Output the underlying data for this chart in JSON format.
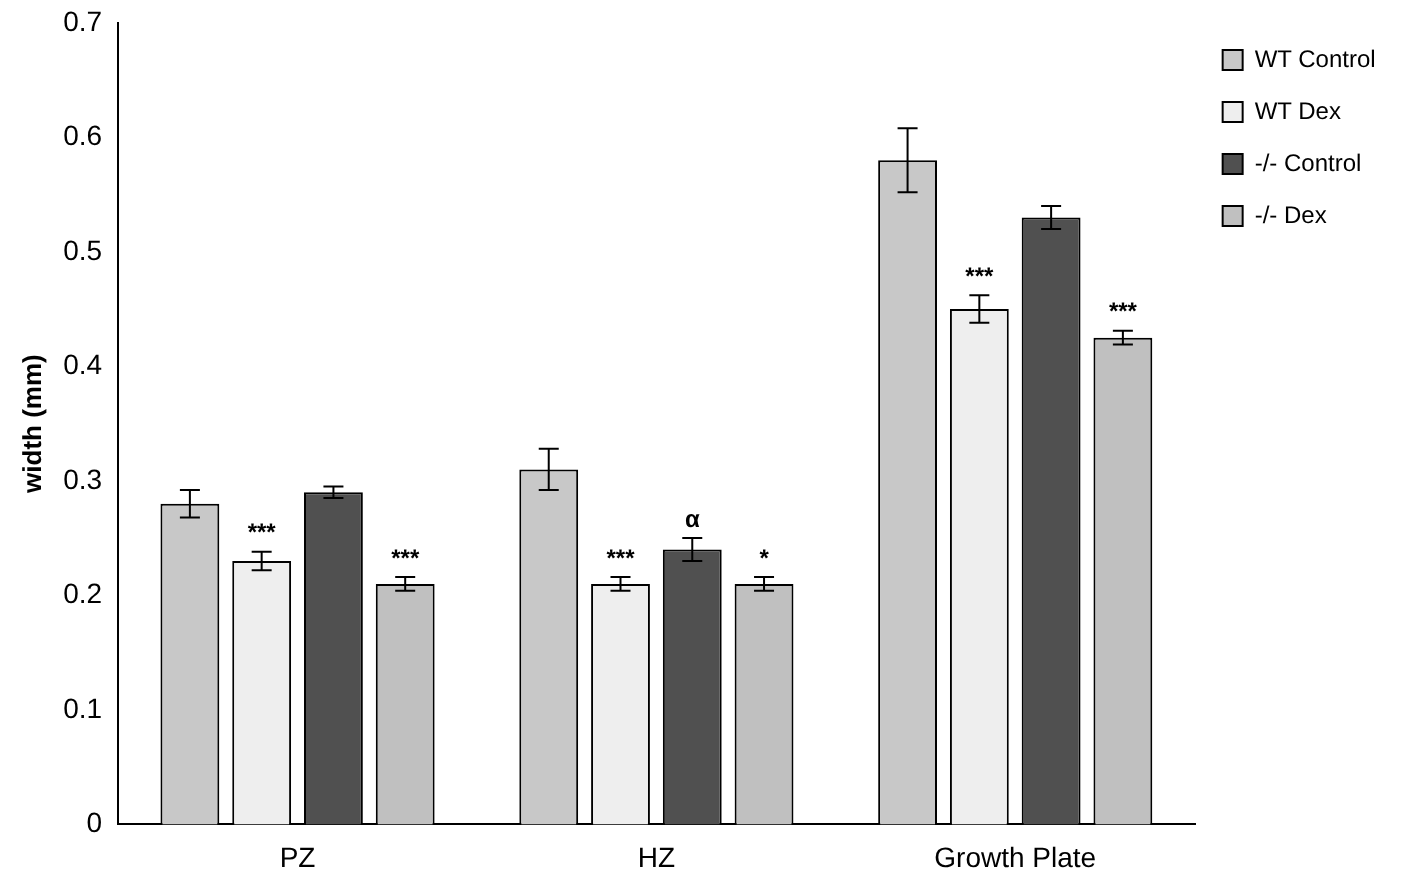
{
  "chart_data": {
    "type": "bar",
    "ylabel": "width (mm)",
    "categories": [
      "PZ",
      "HZ",
      "Growth Plate"
    ],
    "series": [
      {
        "name": "WT Control",
        "color": "#c8c8c8",
        "values": [
          0.28,
          0.31,
          0.58
        ],
        "errors": [
          0.012,
          0.018,
          0.028
        ]
      },
      {
        "name": "WT Dex",
        "color": "#eeeeee",
        "values": [
          0.23,
          0.21,
          0.45
        ],
        "errors": [
          0.008,
          0.006,
          0.012
        ],
        "value_labels": [
          "***",
          "***",
          "***"
        ]
      },
      {
        "name": "-/- Control",
        "color": "#505050",
        "values": [
          0.29,
          0.24,
          0.53
        ],
        "errors": [
          0.005,
          0.01,
          0.01
        ],
        "value_labels": [
          null,
          "α",
          null
        ]
      },
      {
        "name": "-/- Dex",
        "color": "#c0c0c0",
        "values": [
          0.21,
          0.21,
          0.425
        ],
        "errors": [
          0.006,
          0.006,
          0.006
        ],
        "value_labels": [
          "***",
          "*",
          "***"
        ]
      }
    ],
    "ylim": [
      0,
      0.7
    ],
    "yticks": [
      0,
      0.1,
      0.2,
      0.3,
      0.4,
      0.5,
      0.6,
      0.7
    ],
    "grid": false,
    "legend": "top right"
  }
}
